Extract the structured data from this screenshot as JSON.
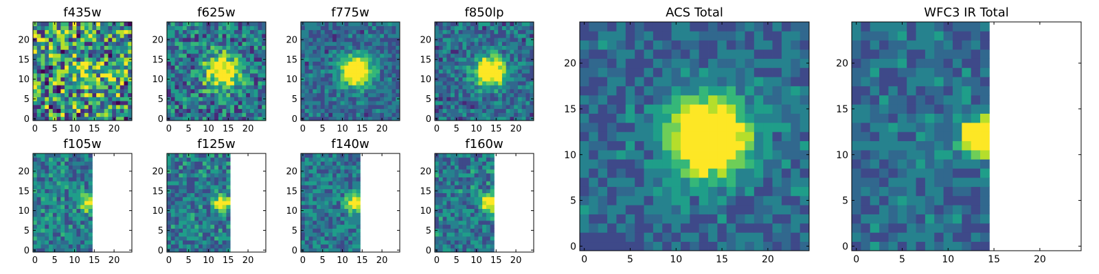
{
  "chart_data": [
    {
      "type": "heatmap",
      "title": "f435w",
      "grid_size": 25,
      "seed": 11,
      "peak": 0.25,
      "sigma": 3.0,
      "noise": 0.95,
      "valid_cols": 25,
      "xticks": [
        "0",
        "5",
        "10",
        "15",
        "20"
      ],
      "yticks": [
        "0",
        "5",
        "10",
        "15",
        "20"
      ]
    },
    {
      "type": "heatmap",
      "title": "f625w",
      "grid_size": 25,
      "seed": 23,
      "peak": 0.75,
      "sigma": 3.0,
      "noise": 0.7,
      "valid_cols": 25,
      "xticks": [
        "0",
        "5",
        "10",
        "15",
        "20"
      ],
      "yticks": [
        "0",
        "5",
        "10",
        "15",
        "20"
      ]
    },
    {
      "type": "heatmap",
      "title": "f775w",
      "grid_size": 25,
      "seed": 37,
      "peak": 1.0,
      "sigma": 2.6,
      "noise": 0.5,
      "valid_cols": 25,
      "xticks": [
        "0",
        "5",
        "10",
        "15",
        "20"
      ],
      "yticks": [
        "0",
        "5",
        "10",
        "15",
        "20"
      ]
    },
    {
      "type": "heatmap",
      "title": "f850lp",
      "grid_size": 25,
      "seed": 41,
      "peak": 0.95,
      "sigma": 2.6,
      "noise": 0.55,
      "valid_cols": 25,
      "xticks": [
        "0",
        "5",
        "10",
        "15",
        "20"
      ],
      "yticks": [
        "0",
        "5",
        "10",
        "15",
        "20"
      ]
    },
    {
      "type": "heatmap",
      "title": "f105w",
      "grid_size": 25,
      "seed": 53,
      "peak": 0.6,
      "sigma": 1.4,
      "noise": 0.5,
      "valid_cols": 15,
      "xticks": [
        "0",
        "5",
        "10",
        "15",
        "20"
      ],
      "yticks": [
        "0",
        "5",
        "10",
        "15",
        "20"
      ]
    },
    {
      "type": "heatmap",
      "title": "f125w",
      "grid_size": 25,
      "seed": 67,
      "peak": 0.7,
      "sigma": 1.4,
      "noise": 0.55,
      "valid_cols": 16,
      "xticks": [
        "0",
        "5",
        "10",
        "15",
        "20"
      ],
      "yticks": [
        "0",
        "5",
        "10",
        "15",
        "20"
      ]
    },
    {
      "type": "heatmap",
      "title": "f140w",
      "grid_size": 25,
      "seed": 71,
      "peak": 0.75,
      "sigma": 1.6,
      "noise": 0.5,
      "valid_cols": 15,
      "xticks": [
        "0",
        "5",
        "10",
        "15",
        "20"
      ],
      "yticks": [
        "0",
        "5",
        "10",
        "15",
        "20"
      ]
    },
    {
      "type": "heatmap",
      "title": "f160w",
      "grid_size": 25,
      "seed": 89,
      "peak": 0.75,
      "sigma": 1.6,
      "noise": 0.55,
      "valid_cols": 15,
      "xticks": [
        "0",
        "5",
        "10",
        "15",
        "20"
      ],
      "yticks": [
        "0",
        "5",
        "10",
        "15",
        "20"
      ]
    },
    {
      "type": "heatmap",
      "title": "ACS Total",
      "grid_size": 25,
      "seed": 97,
      "peak": 1.0,
      "sigma": 3.0,
      "noise": 0.45,
      "valid_cols": 25,
      "xticks": [
        "0",
        "5",
        "10",
        "15",
        "20"
      ],
      "yticks": [
        "0",
        "5",
        "10",
        "15",
        "20"
      ]
    },
    {
      "type": "heatmap",
      "title": "WFC3 IR Total",
      "grid_size": 25,
      "seed": 101,
      "peak": 0.95,
      "sigma": 1.5,
      "noise": 0.45,
      "valid_cols": 15,
      "xticks": [
        "0",
        "5",
        "10",
        "15",
        "20"
      ],
      "yticks": [
        "0",
        "5",
        "10",
        "15",
        "20"
      ]
    }
  ],
  "colors": {
    "viridis": [
      "#440154",
      "#482878",
      "#3e4989",
      "#31688e",
      "#26828e",
      "#1f9e89",
      "#35b779",
      "#6ece58",
      "#b5de2b",
      "#fde725"
    ],
    "frame": "#000000",
    "background": "#ffffff"
  }
}
